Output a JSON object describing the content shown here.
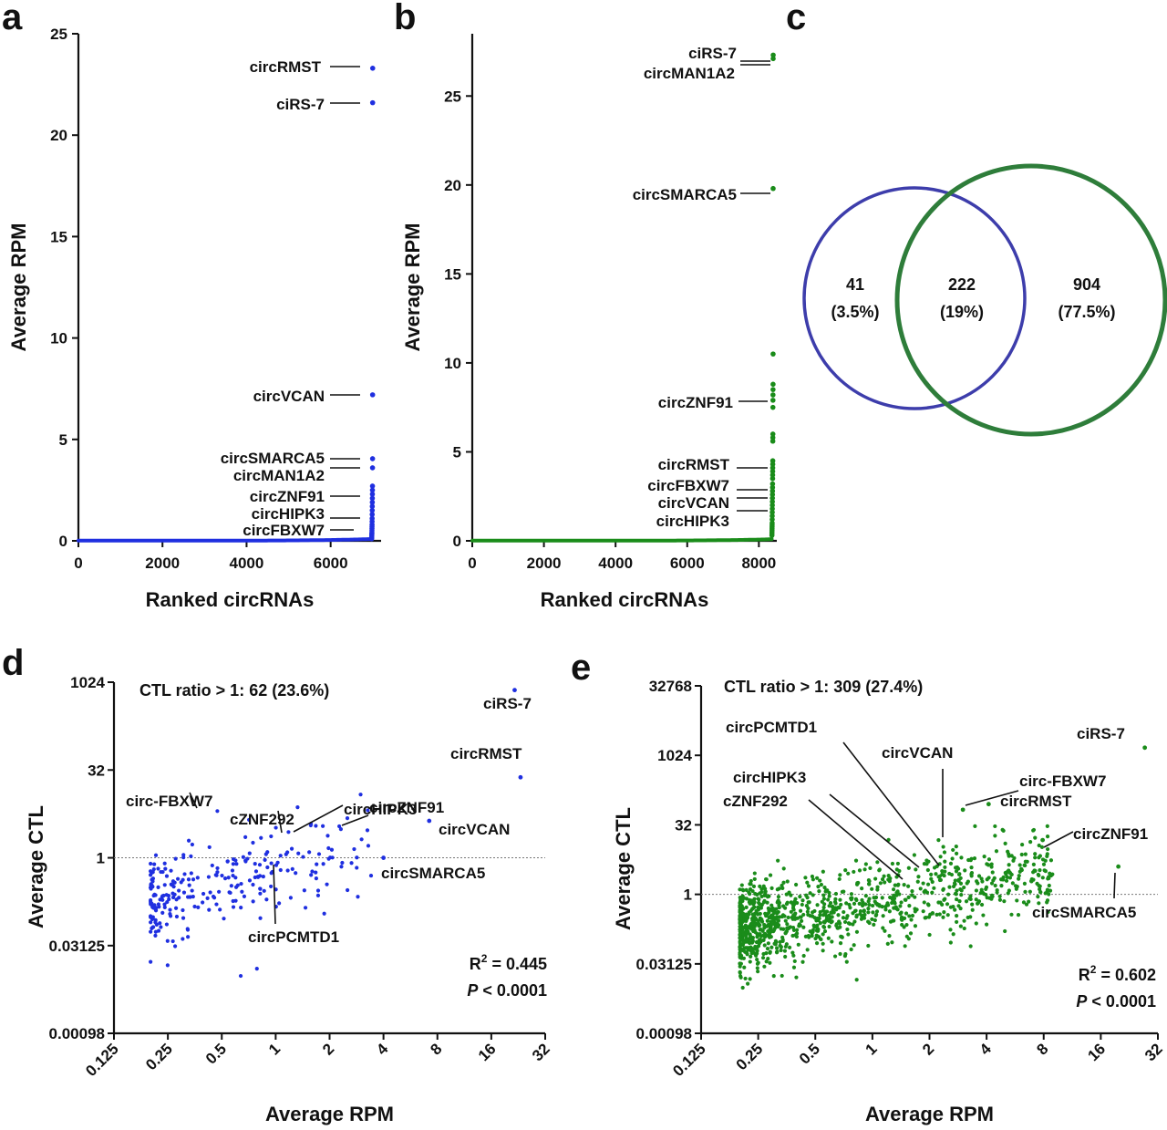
{
  "colors": {
    "blue": "#1f2fe0",
    "green": "#1a8c1a",
    "venn_blue": "#3d3dab",
    "venn_green": "#2e7d3a"
  },
  "panels": {
    "a": "a",
    "b": "b",
    "c": "c",
    "d": "d",
    "e": "e"
  },
  "chart_data": [
    {
      "id": "a",
      "type": "scatter",
      "xlabel": "Ranked circRNAs",
      "ylabel": "Average RPM",
      "xlim": [
        0,
        7200
      ],
      "ylim": [
        0,
        25
      ],
      "xticks": [
        0,
        2000,
        4000,
        6000
      ],
      "yticks": [
        0,
        5,
        10,
        15,
        20,
        25
      ],
      "n": 7000,
      "top_values": [
        23.3,
        21.6,
        7.2,
        4.05,
        3.6,
        2.7,
        2.5,
        2.3,
        2.1,
        1.9,
        1.7,
        1.5,
        1.3,
        1.1,
        0.95,
        0.8,
        0.7,
        0.6,
        0.5,
        0.4,
        0.35,
        0.3,
        0.25,
        0.2,
        0.15,
        0.12,
        0.1
      ],
      "annotations": [
        {
          "label": "circRMST",
          "y": 23.3
        },
        {
          "label": "ciRS-7",
          "y": 21.6
        },
        {
          "label": "circVCAN",
          "y": 7.2
        },
        {
          "label": "circSMARCA5",
          "y": 4.0
        },
        {
          "label": "circMAN1A2",
          "y": 3.6
        },
        {
          "label": "circZNF91",
          "y": 2.3
        },
        {
          "label": "circHIPK3",
          "y": 1.1
        },
        {
          "label": "circFBXW7",
          "y": 0.6
        }
      ]
    },
    {
      "id": "b",
      "type": "scatter",
      "xlabel": "Ranked circRNAs",
      "ylabel": "Average RPM",
      "xlim": [
        0,
        8500
      ],
      "ylim": [
        0,
        28.5
      ],
      "xticks": [
        0,
        2000,
        4000,
        6000,
        8000
      ],
      "yticks": [
        0,
        5,
        10,
        15,
        20,
        25
      ],
      "n": 8400,
      "top_values": [
        27.3,
        27.1,
        19.8,
        10.5,
        8.8,
        8.5,
        8.2,
        7.9,
        7.5,
        6.0,
        5.8,
        5.6,
        4.5,
        4.3,
        4.1,
        3.9,
        3.7,
        3.5,
        3.2,
        3.0,
        2.8,
        2.6,
        2.4,
        2.2,
        2.0,
        1.8,
        1.6,
        1.4,
        1.2,
        1.0,
        0.9,
        0.8,
        0.7,
        0.6,
        0.5,
        0.4,
        0.3
      ],
      "annotations": [
        {
          "label": "ciRS-7",
          "y": 27.35
        },
        {
          "label": "circMAN1A2",
          "y": 27.15
        },
        {
          "label": "circSMARCA5",
          "y": 19.8
        },
        {
          "label": "circZNF91",
          "y": 7.9
        },
        {
          "label": "circRMST",
          "y": 4.1
        },
        {
          "label": "circFBXW7",
          "y": 2.9
        },
        {
          "label": "circVCAN",
          "y": 2.5
        },
        {
          "label": "circHIPK3",
          "y": 1.7
        }
      ]
    },
    {
      "id": "c",
      "type": "venn",
      "sets": [
        {
          "value": "41",
          "percent": "(3.5%)"
        },
        {
          "value": "222",
          "percent": "(19%)"
        },
        {
          "value": "904",
          "percent": "(77.5%)"
        }
      ]
    },
    {
      "id": "d",
      "type": "scatter",
      "xlabel": "Average RPM",
      "ylabel": "Average CTL",
      "x_scale": "log2",
      "y_scale": "log2",
      "xlim": [
        0.125,
        32
      ],
      "ylim": [
        0.00098,
        1024
      ],
      "xticks": [
        "0.125",
        "0.25",
        "0.5",
        "1",
        "2",
        "4",
        "8",
        "16",
        "32"
      ],
      "yticks": [
        "0.00098",
        "0.03125",
        "1",
        "32",
        "1024"
      ],
      "ratio_text": "CTL ratio > 1: 62 (23.6%)",
      "r2_text": "R",
      "r2_sup": "2",
      "r2_value": " = 0.445",
      "p_italic": "P",
      "p_value": " < 0.0001",
      "n_points": 263,
      "highlights": [
        {
          "x": 21.6,
          "y": 750
        },
        {
          "x": 23.3,
          "y": 24
        },
        {
          "x": 7.2,
          "y": 4.3
        },
        {
          "x": 4.0,
          "y": 1
        }
      ],
      "annotations": [
        {
          "label": "ciRS-7"
        },
        {
          "label": "circRMST"
        },
        {
          "label": "circ-FBXW7"
        },
        {
          "label": "cZNF292"
        },
        {
          "label": "circHIPK3"
        },
        {
          "label": "circZNF91"
        },
        {
          "label": "circVCAN"
        },
        {
          "label": "circSMARCA5"
        },
        {
          "label": "circPCMTD1"
        }
      ]
    },
    {
      "id": "e",
      "type": "scatter",
      "xlabel": "Average RPM",
      "ylabel": "Average CTL",
      "x_scale": "log2",
      "y_scale": "log2",
      "xlim": [
        0.125,
        32
      ],
      "ylim": [
        0.00098,
        32768
      ],
      "xticks": [
        "0.125",
        "0.25",
        "0.5",
        "1",
        "2",
        "4",
        "8",
        "16",
        "32"
      ],
      "yticks": [
        "0.00098",
        "0.03125",
        "1",
        "32",
        "1024",
        "32768"
      ],
      "ratio_text": "CTL ratio > 1: 309 (27.4%)",
      "r2_text": "R",
      "r2_sup": "2",
      "r2_value": " = 0.602",
      "p_italic": "P",
      "p_value": " < 0.0001",
      "n_points": 1126,
      "highlights": [
        {
          "x": 27.3,
          "y": 1500
        },
        {
          "x": 4.1,
          "y": 90
        },
        {
          "x": 3.0,
          "y": 68
        },
        {
          "x": 7.9,
          "y": 15
        },
        {
          "x": 19.8,
          "y": 4.0
        }
      ],
      "annotations": [
        {
          "label": "ciRS-7"
        },
        {
          "label": "circPCMTD1"
        },
        {
          "label": "circVCAN"
        },
        {
          "label": "circHIPK3"
        },
        {
          "label": "circ-FBXW7"
        },
        {
          "label": "cZNF292"
        },
        {
          "label": "circRMST"
        },
        {
          "label": "circZNF91"
        },
        {
          "label": "circSMARCA5"
        }
      ]
    }
  ]
}
